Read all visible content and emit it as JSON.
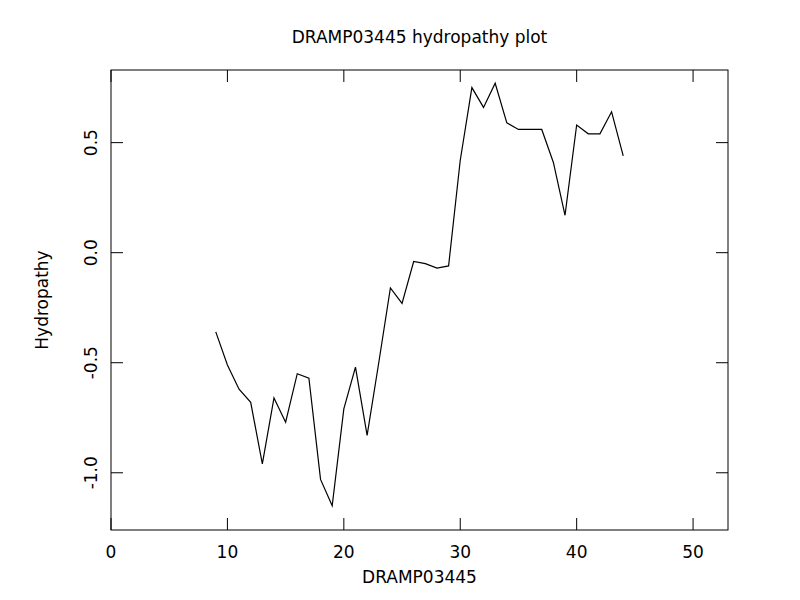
{
  "chart_data": {
    "type": "line",
    "title": "DRAMP03445 hydropathy plot",
    "x_label": "DRAMP03445",
    "y_label": "Hydropathy",
    "x": [
      9,
      10,
      11,
      12,
      13,
      14,
      15,
      16,
      17,
      18,
      19,
      20,
      21,
      22,
      23,
      24,
      25,
      26,
      27,
      28,
      29,
      30,
      31,
      32,
      33,
      34,
      35,
      36,
      37,
      38,
      39,
      40,
      41,
      42,
      43,
      44
    ],
    "values": [
      -0.36,
      -0.51,
      -0.62,
      -0.68,
      -0.96,
      -0.66,
      -0.77,
      -0.55,
      -0.57,
      -1.03,
      -1.15,
      -0.71,
      -0.52,
      -0.83,
      -0.5,
      -0.16,
      -0.23,
      -0.04,
      -0.05,
      -0.07,
      -0.06,
      0.42,
      0.75,
      0.66,
      0.77,
      0.59,
      0.56,
      0.56,
      0.56,
      0.41,
      0.17,
      0.58,
      0.54,
      0.54,
      0.64,
      0.44
    ],
    "color": "#000000",
    "xlim": [
      0,
      53
    ],
    "ylim": [
      -1.26,
      0.83
    ],
    "xticks": [
      0,
      10,
      20,
      30,
      40,
      50
    ],
    "yticks": [
      {
        "value": -1,
        "label": "-1.0"
      },
      -0.5,
      {
        "value": 0,
        "label": "0.0"
      },
      0.5
    ],
    "grid": false
  }
}
